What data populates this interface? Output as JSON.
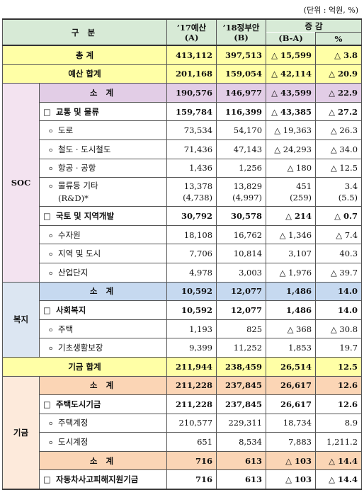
{
  "unit": "(단위 : 억원, %)",
  "header": {
    "category": "구 분",
    "a": [
      "’17예산",
      "(A)"
    ],
    "b": [
      "’18정부안",
      "(B)"
    ],
    "change": [
      "증 감",
      "(B-A)"
    ],
    "pct": "%"
  },
  "rows": [
    {
      "label": "총 계",
      "values": [
        "413,112",
        "397,513",
        "△ 15,599",
        "△ 3.8"
      ]
    },
    {
      "label": "예산 합계",
      "values": [
        "201,168",
        "159,054",
        "△ 42,114",
        "△ 20.9"
      ]
    },
    {
      "group": "SOC",
      "color": "#e2cde6",
      "side_color": "#f3e3f0",
      "rows": [
        {
          "label": "소 계",
          "values": [
            "190,576",
            "146,977",
            "△ 43,599",
            "△ 22.9"
          ]
        },
        {
          "marker": "□",
          "label": "교통 및 물류",
          "values": [
            "159,784",
            "116,399",
            "△ 43,385",
            "△ 27.2"
          ]
        },
        {
          "marker": "ㅇ",
          "label": "도로",
          "values": [
            "73,534",
            "54,170",
            "△ 19,363",
            "△ 26.3"
          ]
        },
        {
          "marker": "ㅇ",
          "label": "철도 · 도시철도",
          "values": [
            "71,436",
            "47,143",
            "△ 24,293",
            "△ 34.0"
          ]
        },
        {
          "marker": "ㅇ",
          "label": "항공 · 공항",
          "values": [
            "1,436",
            "1,256",
            "△ 180",
            "△ 12.5"
          ]
        },
        {
          "marker": "ㅇ",
          "label": [
            "물류등 기타",
            "(R&D)*"
          ],
          "values": [
            [
              "13,378",
              "(4,738)"
            ],
            [
              "13,829",
              "(4,997)"
            ],
            [
              "451",
              "(259)"
            ],
            [
              "3.4",
              "(5.5)"
            ]
          ]
        },
        {
          "marker": "□",
          "label": "국토 및 지역개발",
          "values": [
            "30,792",
            "30,578",
            "△ 214",
            "△ 0.7"
          ]
        },
        {
          "marker": "ㅇ",
          "label": "수자원",
          "values": [
            "18,108",
            "16,762",
            "△ 1,346",
            "△ 7.4"
          ]
        },
        {
          "marker": "ㅇ",
          "label": "지역 및 도시",
          "values": [
            "7,706",
            "10,814",
            "3,107",
            "40.3"
          ]
        },
        {
          "marker": "ㅇ",
          "label": "산업단지",
          "values": [
            "4,978",
            "3,003",
            "△ 1,976",
            "△ 39.7"
          ]
        }
      ]
    },
    {
      "group": "복지",
      "color": "#c6d9f0",
      "side_color": "#dce6f2",
      "rows": [
        {
          "label": "소 계",
          "values": [
            "10,592",
            "12,077",
            "1,486",
            "14.0"
          ]
        },
        {
          "marker": "□",
          "label": "사회복지",
          "values": [
            "10,592",
            "12,077",
            "1,486",
            "14.0"
          ]
        },
        {
          "marker": "ㅇ",
          "label": "주택",
          "values": [
            "1,193",
            "825",
            "△ 368",
            "△ 30.8"
          ]
        },
        {
          "marker": "ㅇ",
          "label": "기초생활보장",
          "values": [
            "9,399",
            "11,252",
            "1,853",
            "19.7"
          ]
        }
      ]
    },
    {
      "label": "기금 합계",
      "values": [
        "211,944",
        "238,459",
        "26,514",
        "12.5"
      ]
    },
    {
      "group": "기금",
      "color": "#fbd5b5",
      "side_color": "#fdeadb",
      "rows": [
        {
          "label": "소 계",
          "values": [
            "211,228",
            "237,845",
            "26,617",
            "12.6"
          ]
        },
        {
          "marker": "□",
          "label": "주택도시기금",
          "values": [
            "211,228",
            "237,845",
            "26,617",
            "12.6"
          ]
        },
        {
          "marker": "ㅇ",
          "label": "주택계정",
          "values": [
            "210,577",
            "229,311",
            "18,734",
            "8.9"
          ]
        },
        {
          "marker": "ㅇ",
          "label": "도시계정",
          "values": [
            "651",
            "8,534",
            "7,883",
            "1,211.2"
          ]
        },
        {
          "label": "소 계",
          "values": [
            "716",
            "613",
            "△ 103",
            "△ 14.4"
          ]
        },
        {
          "marker": "□",
          "label": "자동차사고피해지원기금",
          "values": [
            "716",
            "613",
            "△ 103",
            "△ 14.4"
          ]
        }
      ]
    }
  ],
  "total_color": "#ffffa6",
  "header_color": "#d7ead6"
}
